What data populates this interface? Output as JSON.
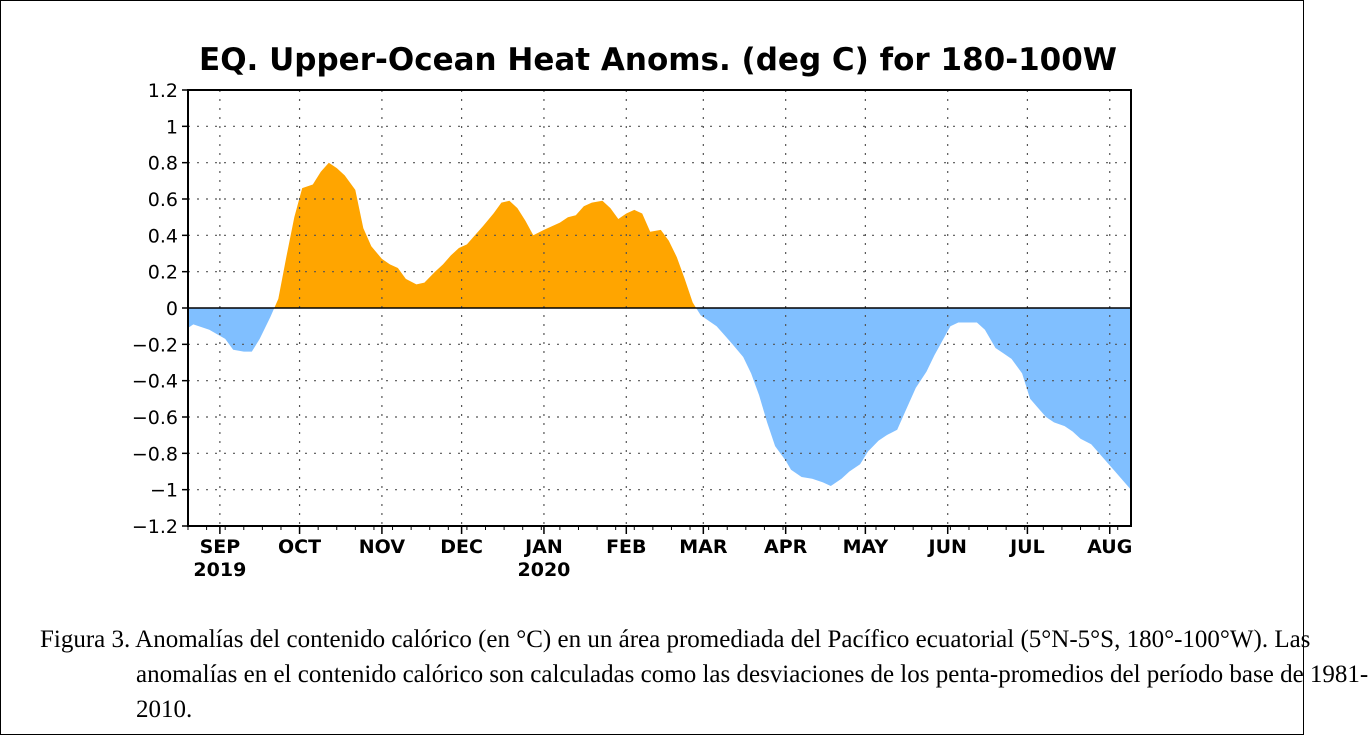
{
  "caption": "Figura 3. Anomalías del contenido calórico (en °C) en un área promediada del Pacífico ecuatorial (5°N-5°S, 180°-100°W). Las anomalías en el contenido calórico son calculadas como las desviaciones de los penta-promedios del período base de 1981-2010.",
  "chart_data": {
    "type": "area",
    "title": "EQ. Upper-Ocean Heat Anoms. (deg C) for 180-100W",
    "xlabel": "",
    "ylabel": "",
    "ylim": [
      -1.2,
      1.2
    ],
    "yticks": [
      1.2,
      1,
      0.8,
      0.6,
      0.4,
      0.2,
      0,
      -0.2,
      -0.4,
      -0.6,
      -0.8,
      -1,
      -1.2
    ],
    "ytick_labels": [
      "1.2",
      "1",
      "0.8",
      "0.6",
      "0.4",
      "0.2",
      "0",
      "−0.2",
      "−0.4",
      "−0.6",
      "−0.8",
      "−1",
      "−1.2"
    ],
    "xlim": [
      "2019-08-20",
      "2020-08-09"
    ],
    "xticks": [
      {
        "date": "2019-09-01",
        "label": "SEP",
        "year": "2019"
      },
      {
        "date": "2019-10-01",
        "label": "OCT",
        "year": ""
      },
      {
        "date": "2019-11-01",
        "label": "NOV",
        "year": ""
      },
      {
        "date": "2019-12-01",
        "label": "DEC",
        "year": ""
      },
      {
        "date": "2020-01-01",
        "label": "JAN",
        "year": "2020"
      },
      {
        "date": "2020-02-01",
        "label": "FEB",
        "year": ""
      },
      {
        "date": "2020-03-01",
        "label": "MAR",
        "year": ""
      },
      {
        "date": "2020-04-01",
        "label": "APR",
        "year": ""
      },
      {
        "date": "2020-05-01",
        "label": "MAY",
        "year": ""
      },
      {
        "date": "2020-06-01",
        "label": "JUN",
        "year": ""
      },
      {
        "date": "2020-07-01",
        "label": "JUL",
        "year": ""
      },
      {
        "date": "2020-08-01",
        "label": "AUG",
        "year": ""
      }
    ],
    "grid": true,
    "colors": {
      "positive": "#ffa500",
      "negative": "#80bfff"
    },
    "series": [
      {
        "x": [
          "2019-08-20",
          "2019-08-22",
          "2019-08-28",
          "2019-09-03",
          "2019-09-06",
          "2019-09-10",
          "2019-09-13",
          "2019-09-16",
          "2019-09-20",
          "2019-09-23",
          "2019-09-26",
          "2019-09-29",
          "2019-10-02",
          "2019-10-06",
          "2019-10-09",
          "2019-10-12",
          "2019-10-15",
          "2019-10-18",
          "2019-10-22",
          "2019-10-25",
          "2019-10-28",
          "2019-11-01",
          "2019-11-04",
          "2019-11-07",
          "2019-11-10",
          "2019-11-14",
          "2019-11-17",
          "2019-11-21",
          "2019-11-24",
          "2019-11-27",
          "2019-11-30",
          "2019-12-03",
          "2019-12-06",
          "2019-12-09",
          "2019-12-13",
          "2019-12-16",
          "2019-12-19",
          "2019-12-22",
          "2019-12-25",
          "2019-12-28",
          "2020-01-01",
          "2020-01-04",
          "2020-01-07",
          "2020-01-10",
          "2020-01-13",
          "2020-01-16",
          "2020-01-19",
          "2020-01-23",
          "2020-01-26",
          "2020-01-29",
          "2020-02-01",
          "2020-02-04",
          "2020-02-07",
          "2020-02-10",
          "2020-02-14",
          "2020-02-17",
          "2020-02-20",
          "2020-02-23",
          "2020-02-26",
          "2020-02-29",
          "2020-03-03",
          "2020-03-06",
          "2020-03-09",
          "2020-03-12",
          "2020-03-16",
          "2020-03-19",
          "2020-03-22",
          "2020-03-25",
          "2020-03-28",
          "2020-04-01",
          "2020-04-03",
          "2020-04-07",
          "2020-04-11",
          "2020-04-15",
          "2020-04-18",
          "2020-04-22",
          "2020-04-25",
          "2020-04-29",
          "2020-05-02",
          "2020-05-06",
          "2020-05-09",
          "2020-05-13",
          "2020-05-16",
          "2020-05-20",
          "2020-05-24",
          "2020-05-27",
          "2020-05-30",
          "2020-06-02",
          "2020-06-05",
          "2020-06-09",
          "2020-06-12",
          "2020-06-15",
          "2020-06-19",
          "2020-06-22",
          "2020-06-25",
          "2020-06-29",
          "2020-07-02",
          "2020-07-05",
          "2020-07-08",
          "2020-07-11",
          "2020-07-15",
          "2020-07-18",
          "2020-07-21",
          "2020-07-25",
          "2020-07-28",
          "2020-07-31",
          "2020-08-03",
          "2020-08-06",
          "2020-08-09"
        ],
        "y": [
          -0.11,
          -0.09,
          -0.12,
          -0.17,
          -0.23,
          -0.24,
          -0.24,
          -0.17,
          -0.05,
          0.05,
          0.28,
          0.5,
          0.66,
          0.68,
          0.75,
          0.8,
          0.77,
          0.73,
          0.65,
          0.44,
          0.34,
          0.27,
          0.24,
          0.22,
          0.16,
          0.13,
          0.14,
          0.2,
          0.24,
          0.29,
          0.33,
          0.35,
          0.4,
          0.45,
          0.52,
          0.58,
          0.59,
          0.55,
          0.48,
          0.4,
          0.43,
          0.45,
          0.47,
          0.5,
          0.51,
          0.56,
          0.58,
          0.59,
          0.55,
          0.49,
          0.52,
          0.54,
          0.52,
          0.42,
          0.43,
          0.37,
          0.28,
          0.16,
          0.03,
          -0.04,
          -0.07,
          -0.1,
          -0.15,
          -0.2,
          -0.27,
          -0.36,
          -0.48,
          -0.63,
          -0.76,
          -0.84,
          -0.89,
          -0.93,
          -0.94,
          -0.96,
          -0.98,
          -0.94,
          -0.9,
          -0.86,
          -0.79,
          -0.73,
          -0.7,
          -0.67,
          -0.57,
          -0.44,
          -0.35,
          -0.26,
          -0.18,
          -0.1,
          -0.08,
          -0.08,
          -0.08,
          -0.12,
          -0.22,
          -0.25,
          -0.28,
          -0.36,
          -0.5,
          -0.55,
          -0.6,
          -0.63,
          -0.65,
          -0.68,
          -0.72,
          -0.75,
          -0.8,
          -0.85,
          -0.9,
          -0.95,
          -1.0
        ]
      }
    ]
  }
}
